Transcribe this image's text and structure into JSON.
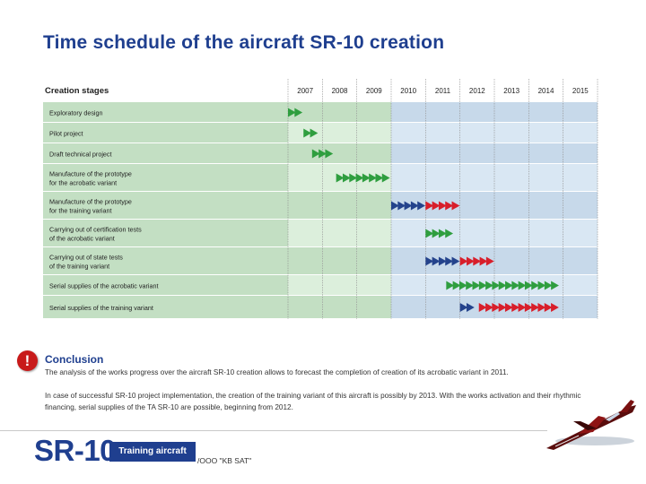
{
  "title": "Time schedule of the aircraft SR-10 creation",
  "colors": {
    "green_arrow": "#2f9e3f",
    "blue_arrow": "#24438c",
    "red_arrow": "#d81e2a",
    "row_green": "#c3dfc3",
    "row_green_light": "#dcefdc",
    "row_blue": "#c7d9ea",
    "row_blue_light": "#d9e7f3",
    "title_blue": "#1f3f8f"
  },
  "chart_data": {
    "type": "gantt",
    "title": "Time schedule of the aircraft SR-10 creation",
    "header_label": "Creation stages",
    "years": [
      "2007",
      "2008",
      "2009",
      "2010",
      "2011",
      "2012",
      "2013",
      "2014",
      "2015"
    ],
    "tasks": [
      {
        "label": [
          "Exploratory design"
        ],
        "segments": [
          {
            "start": 2007.0,
            "end": 2007.55,
            "color": "green"
          }
        ]
      },
      {
        "label": [
          "Pilot project"
        ],
        "segments": [
          {
            "start": 2007.45,
            "end": 2008.0,
            "color": "green"
          }
        ]
      },
      {
        "label": [
          "Draft technical project"
        ],
        "segments": [
          {
            "start": 2007.7,
            "end": 2008.3,
            "color": "green"
          }
        ]
      },
      {
        "label": [
          "Manufacture of the prototype",
          "for the acrobatic variant"
        ],
        "segments": [
          {
            "start": 2008.4,
            "end": 2010.0,
            "color": "green"
          }
        ]
      },
      {
        "label": [
          "Manufacture of the prototype",
          "for the training variant"
        ],
        "segments": [
          {
            "start": 2010.0,
            "end": 2011.0,
            "color": "blue"
          },
          {
            "start": 2011.0,
            "end": 2012.0,
            "color": "red"
          }
        ]
      },
      {
        "label": [
          "Carrying out of certification tests",
          "of the acrobatic variant"
        ],
        "segments": [
          {
            "start": 2011.0,
            "end": 2011.75,
            "color": "green"
          }
        ]
      },
      {
        "label": [
          "Carrying out of state tests",
          "of the training variant"
        ],
        "segments": [
          {
            "start": 2011.0,
            "end": 2012.0,
            "color": "blue"
          },
          {
            "start": 2012.0,
            "end": 2013.0,
            "color": "red"
          }
        ]
      },
      {
        "label": [
          "Serial supplies of the acrobatic variant"
        ],
        "segments": [
          {
            "start": 2011.6,
            "end": 2015.0,
            "color": "green"
          }
        ]
      },
      {
        "label": [
          "Serial supplies of the training variant"
        ],
        "segments": [
          {
            "start": 2012.0,
            "end": 2012.55,
            "color": "blue"
          },
          {
            "start": 2012.55,
            "end": 2015.0,
            "color": "red"
          }
        ]
      }
    ]
  },
  "conclusion": {
    "icon_text": "!",
    "heading": "Conclusion",
    "para1": "The analysis of the works progress over the aircraft SR-10 creation allows to forecast the completion of creation of its acrobatic variant in 2011.",
    "para2": "In case of successful SR-10 project implementation, the creation of the training variant of this aircraft is possibly by 2013. With the works activation and their rhythmic financing, serial supplies of the TA SR-10 are possible, beginning from 2012."
  },
  "footer": {
    "logo": "SR-10",
    "badge": "Training aircraft",
    "company": "/ООО \"KB SAT\""
  }
}
